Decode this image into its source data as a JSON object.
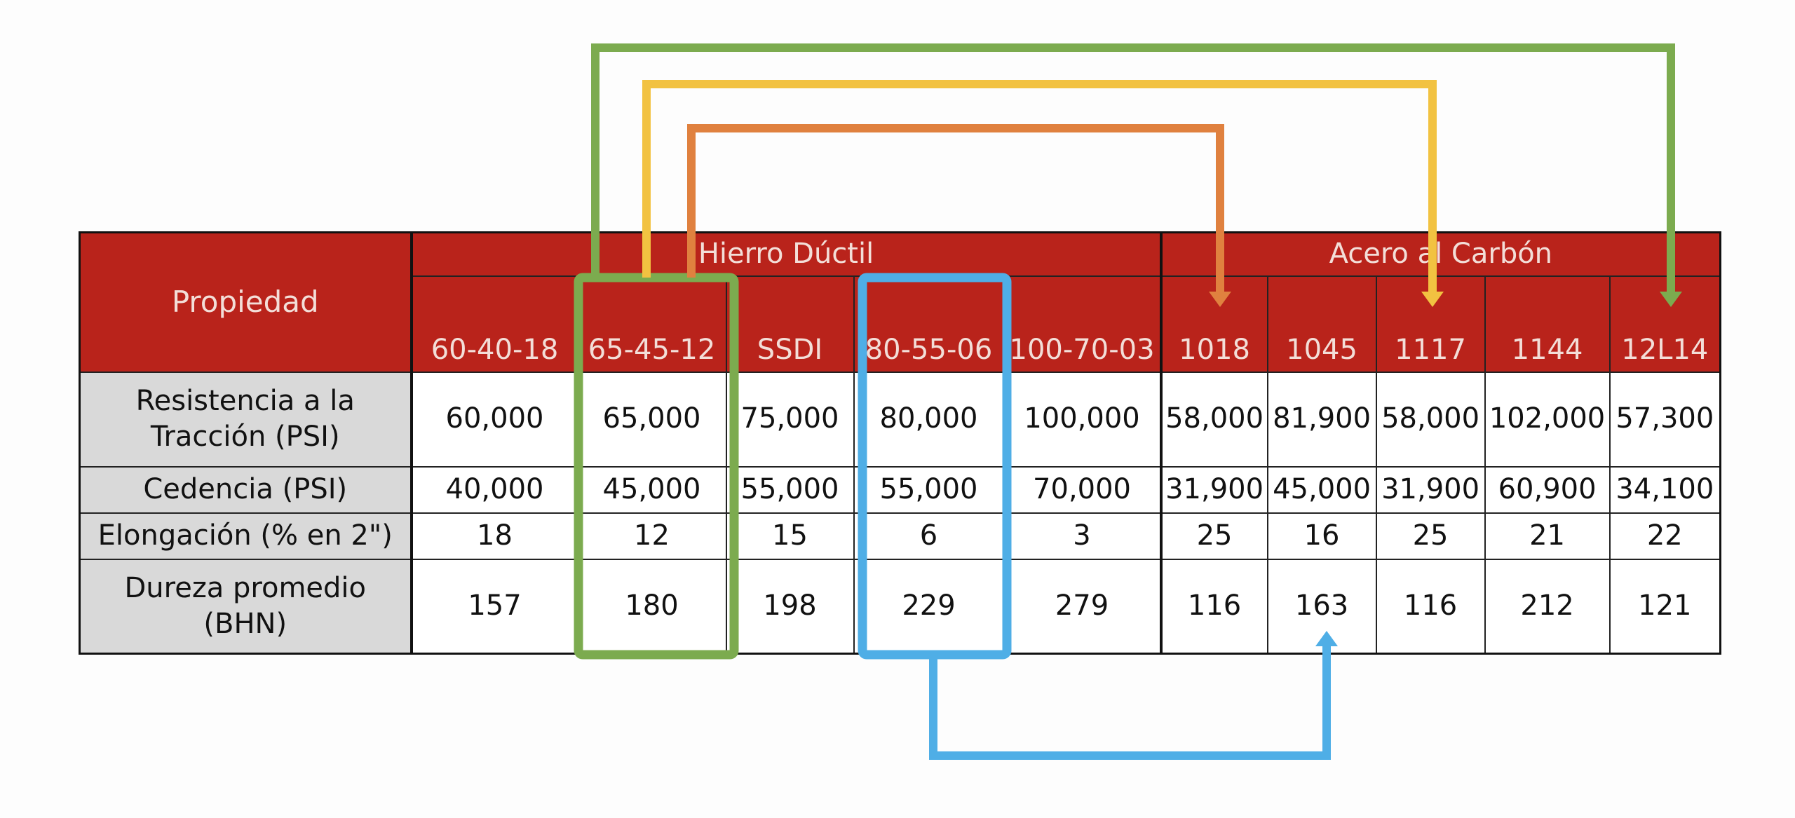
{
  "table": {
    "property_header": "Propiedad",
    "groups": [
      {
        "name": "Hierro Dúctil",
        "span": 5
      },
      {
        "name": "Acero al Carbón",
        "span": 5
      }
    ],
    "columns": [
      "60-40-18",
      "65-45-12",
      "SSDI",
      "80-55-06",
      "100-70-03",
      "1018",
      "1045",
      "1117",
      "1144",
      "12L14"
    ],
    "rows": [
      {
        "label": "Resistencia a la Tracción (PSI)",
        "values": [
          "60,000",
          "65,000",
          "75,000",
          "80,000",
          "100,000",
          "58,000",
          "81,900",
          "58,000",
          "102,000",
          "57,300"
        ]
      },
      {
        "label": "Cedencia (PSI)",
        "values": [
          "40,000",
          "45,000",
          "55,000",
          "55,000",
          "70,000",
          "31,900",
          "45,000",
          "31,900",
          "60,900",
          "34,100"
        ]
      },
      {
        "label": "Elongación (% en 2\")",
        "values": [
          "18",
          "12",
          "15",
          "6",
          "3",
          "25",
          "16",
          "25",
          "21",
          "22"
        ]
      },
      {
        "label": "Dureza promedio (BHN)",
        "values": [
          "157",
          "180",
          "198",
          "229",
          "279",
          "116",
          "163",
          "116",
          "212",
          "121"
        ]
      }
    ]
  },
  "highlights": [
    {
      "column": "65-45-12",
      "color": "#7cab4f"
    },
    {
      "column": "80-55-06",
      "color": "#4faee6"
    }
  ],
  "connectors": [
    {
      "from": "65-45-12",
      "to": "12L14",
      "color": "#7cab4f"
    },
    {
      "from": "65-45-12",
      "to": "1117",
      "color": "#f2c241"
    },
    {
      "from": "65-45-12",
      "to": "1018",
      "color": "#e0813f"
    },
    {
      "from": "80-55-06",
      "to": "1045",
      "color": "#4faee6"
    }
  ]
}
